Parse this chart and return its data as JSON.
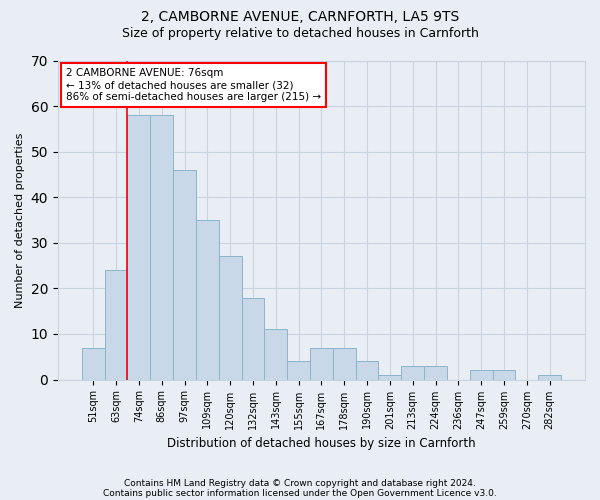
{
  "title1": "2, CAMBORNE AVENUE, CARNFORTH, LA5 9TS",
  "title2": "Size of property relative to detached houses in Carnforth",
  "xlabel": "Distribution of detached houses by size in Carnforth",
  "ylabel": "Number of detached properties",
  "categories": [
    "51sqm",
    "63sqm",
    "74sqm",
    "86sqm",
    "97sqm",
    "109sqm",
    "120sqm",
    "132sqm",
    "143sqm",
    "155sqm",
    "167sqm",
    "178sqm",
    "190sqm",
    "201sqm",
    "213sqm",
    "224sqm",
    "236sqm",
    "247sqm",
    "259sqm",
    "270sqm",
    "282sqm"
  ],
  "values": [
    7,
    24,
    58,
    58,
    46,
    35,
    27,
    18,
    11,
    4,
    7,
    7,
    4,
    1,
    3,
    3,
    0,
    2,
    2,
    0,
    1
  ],
  "bar_color": "#c8d8e8",
  "bar_edge_color": "#8ab4cc",
  "grid_color": "#c8d4e0",
  "background_color": "#e8eef4",
  "vline_color": "red",
  "vline_x": 1.5,
  "annotation_text": "2 CAMBORNE AVENUE: 76sqm\n← 13% of detached houses are smaller (32)\n86% of semi-detached houses are larger (215) →",
  "annotation_box_color": "white",
  "annotation_box_edge": "red",
  "ylim": [
    0,
    70
  ],
  "yticks": [
    0,
    10,
    20,
    30,
    40,
    50,
    60,
    70
  ],
  "footnote1": "Contains HM Land Registry data © Crown copyright and database right 2024.",
  "footnote2": "Contains public sector information licensed under the Open Government Licence v3.0."
}
